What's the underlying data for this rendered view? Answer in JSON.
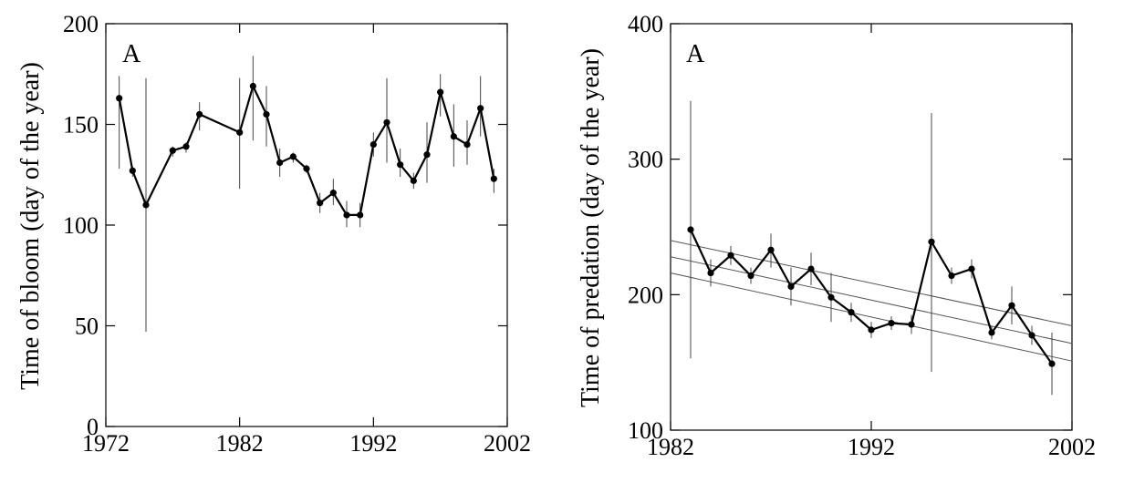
{
  "chart_data": [
    {
      "type": "line",
      "panel_label": "A",
      "ylabel": "Time of bloom (day of the year)",
      "xlabel": "",
      "xlim": [
        1972,
        2002
      ],
      "ylim": [
        0,
        200
      ],
      "xticks": [
        1972,
        1982,
        1992,
        2002
      ],
      "yticks": [
        0,
        50,
        100,
        150,
        200
      ],
      "grid": false,
      "series": [
        {
          "x": [
            1973,
            1974,
            1975,
            1977,
            1978,
            1979,
            1982,
            1983,
            1984,
            1985,
            1986,
            1987,
            1988,
            1989,
            1990,
            1991,
            1992,
            1993,
            1994,
            1995,
            1996,
            1997,
            1998,
            1999,
            2000,
            2001
          ],
          "y": [
            163,
            127,
            110,
            137,
            139,
            155,
            146,
            169,
            155,
            131,
            134,
            128,
            111,
            116,
            105,
            105,
            140,
            151,
            130,
            122,
            135,
            166,
            144,
            140,
            158,
            123
          ],
          "err_low": [
            128,
            124,
            47,
            134,
            136,
            147,
            118,
            142,
            139,
            124,
            131,
            126,
            106,
            110,
            99,
            99,
            134,
            131,
            124,
            118,
            121,
            154,
            129,
            130,
            144,
            116
          ],
          "err_high": [
            174,
            129,
            173,
            139,
            141,
            161,
            173,
            184,
            169,
            138,
            136,
            130,
            116,
            123,
            112,
            111,
            146,
            173,
            138,
            126,
            151,
            175,
            160,
            152,
            174,
            128
          ]
        }
      ]
    },
    {
      "type": "line",
      "panel_label": "A",
      "ylabel": "Time of predation (day of the year)",
      "xlabel": "",
      "xlim": [
        1982,
        2002
      ],
      "ylim": [
        100,
        400
      ],
      "xticks": [
        1982,
        1992,
        2002
      ],
      "yticks": [
        100,
        200,
        300,
        400
      ],
      "grid": false,
      "series": [
        {
          "x": [
            1983,
            1984,
            1985,
            1986,
            1987,
            1988,
            1989,
            1990,
            1991,
            1992,
            1993,
            1994,
            1995,
            1996,
            1997,
            1998,
            1999,
            2000,
            2001
          ],
          "y": [
            248,
            216,
            229,
            214,
            233,
            206,
            219,
            198,
            187,
            174,
            179,
            178,
            239,
            214,
            219,
            172,
            192,
            170,
            149
          ],
          "err_low": [
            153,
            206,
            222,
            208,
            220,
            192,
            207,
            180,
            180,
            168,
            174,
            171,
            143,
            208,
            212,
            167,
            178,
            163,
            126
          ],
          "err_high": [
            343,
            226,
            236,
            220,
            245,
            220,
            231,
            216,
            194,
            180,
            184,
            185,
            334,
            220,
            226,
            177,
            206,
            177,
            172
          ]
        }
      ],
      "regression": {
        "fit": [
          [
            1982,
            228
          ],
          [
            2002,
            164
          ]
        ],
        "upper": [
          [
            1982,
            240
          ],
          [
            2002,
            177
          ]
        ],
        "lower": [
          [
            1982,
            216
          ],
          [
            2002,
            151
          ]
        ]
      }
    }
  ]
}
